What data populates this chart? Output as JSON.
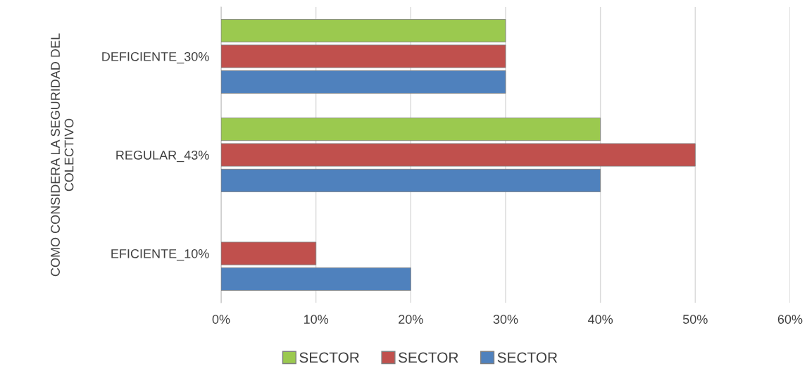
{
  "chart_data": {
    "type": "bar",
    "orientation": "horizontal",
    "ylabel": "COMO CONSIDERA LA SEGURIDAD DEL COLECTIVO",
    "categories": [
      "DEFICIENTE_30%",
      "REGULAR_43%",
      "EFICIENTE_10%"
    ],
    "series": [
      {
        "name": "SECTOR",
        "color": "#9bc94f",
        "values": [
          30,
          40,
          null
        ]
      },
      {
        "name": "SECTOR",
        "color": "#c0504d",
        "values": [
          30,
          50,
          10
        ]
      },
      {
        "name": "SECTOR",
        "color": "#4f81bd",
        "values": [
          30,
          40,
          20
        ]
      }
    ],
    "xlim": [
      0,
      60
    ],
    "xticks": [
      {
        "value": 0,
        "label": "0%"
      },
      {
        "value": 10,
        "label": "10%"
      },
      {
        "value": 20,
        "label": "20%"
      },
      {
        "value": 30,
        "label": "30%"
      },
      {
        "value": 40,
        "label": "40%"
      },
      {
        "value": 50,
        "label": "50%"
      },
      {
        "value": 60,
        "label": "60%"
      }
    ],
    "grid": "x",
    "legend": "bottom"
  }
}
